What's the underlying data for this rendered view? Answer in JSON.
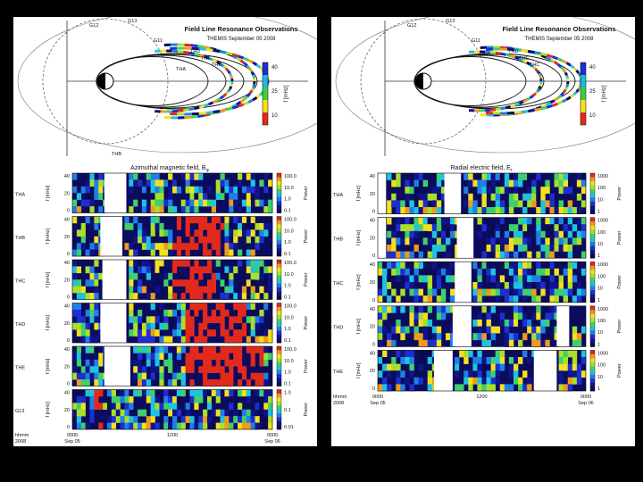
{
  "left": {
    "orbit_title": "Field Line Resonance Observations",
    "orbit_subtitle": "THEMIS  September 05 2008",
    "spacecraft_labels": [
      "G12",
      "G13",
      "G11",
      "THD",
      "THE",
      "THC",
      "THA",
      "THB"
    ],
    "colorbar": {
      "label": "f [mHz]",
      "ticks": [
        "40",
        "25",
        "10"
      ],
      "colors": [
        "#1d2fd0",
        "#1fb8e0",
        "#3fcf3a",
        "#f2e11c",
        "#e22a1c"
      ]
    },
    "spectro_title": "Azimuthal magnetic field, B",
    "spectro_title_sub": "φ",
    "row_ylabel": "f [mHz]",
    "cbar_label": "Power",
    "cbar_ticks": [
      "100.0",
      "10.0",
      "1.0",
      "0.1"
    ],
    "cbar_ticks_last": [
      "1.0",
      "0.1",
      "0.01"
    ],
    "rows": [
      {
        "name": "THA",
        "yticks": [
          "40",
          "20",
          "0"
        ]
      },
      {
        "name": "THB",
        "yticks": [
          "40",
          "20",
          "0"
        ]
      },
      {
        "name": "THC",
        "yticks": [
          "40",
          "20",
          "0"
        ]
      },
      {
        "name": "THD",
        "yticks": [
          "40",
          "20",
          "0"
        ]
      },
      {
        "name": "THE",
        "yticks": [
          "40",
          "20",
          "0"
        ]
      },
      {
        "name": "G13",
        "yticks": [
          "40",
          "20",
          "0"
        ]
      }
    ],
    "x_axis": {
      "hhmm": "hhmm",
      "year": "2008",
      "ticks": [
        "0000",
        "1200",
        "0000"
      ],
      "dates": [
        "Sep 05",
        "",
        "Sep 06"
      ]
    }
  },
  "right": {
    "orbit_title": "Field Line Resonance Observations",
    "orbit_subtitle": "THEMIS  September 05 2008",
    "spacecraft_labels": [
      "G12",
      "G13",
      "G11",
      "THD",
      "THE",
      "THC"
    ],
    "colorbar": {
      "label": "f [mHz]",
      "ticks": [
        "40",
        "25",
        "10"
      ],
      "colors": [
        "#1d2fd0",
        "#1fb8e0",
        "#3fcf3a",
        "#f2e11c",
        "#e22a1c"
      ]
    },
    "spectro_title": "Radial electric field, E",
    "spectro_title_sub": "r",
    "row_ylabel": "f [mHz]",
    "cbar_label": "Power",
    "cbar_ticks": [
      "1000",
      "100",
      "10",
      "1"
    ],
    "rows": [
      {
        "name": "THA",
        "yticks": [
          "40",
          "20",
          "0"
        ]
      },
      {
        "name": "THB",
        "yticks": [
          "40",
          "20",
          "0"
        ]
      },
      {
        "name": "THC",
        "yticks": [
          "40",
          "20",
          "0"
        ]
      },
      {
        "name": "THD",
        "yticks": [
          "40",
          "20",
          "0"
        ]
      },
      {
        "name": "THE",
        "yticks": [
          "40",
          "20",
          "0"
        ]
      }
    ],
    "x_axis": {
      "hhmm": "hhmm",
      "year": "2008",
      "ticks": [
        "0000",
        "1200",
        "0000"
      ],
      "dates": [
        "Sep 05",
        "",
        "Sep 06"
      ]
    }
  },
  "chart_data": [
    {
      "type": "heatmap",
      "title": "Azimuthal magnetic field, Bφ",
      "series": [
        {
          "name": "THA"
        },
        {
          "name": "THB"
        },
        {
          "name": "THC"
        },
        {
          "name": "THD"
        },
        {
          "name": "THE"
        },
        {
          "name": "G13"
        }
      ],
      "ylabel": "f [mHz]",
      "ylim": [
        0,
        40
      ],
      "x_ticks": [
        "0000",
        "1200",
        "0000"
      ],
      "colorbar_label": "Power",
      "colorbar_range": [
        0.1,
        100.0
      ]
    },
    {
      "type": "heatmap",
      "title": "Radial electric field, Er",
      "series": [
        {
          "name": "THA"
        },
        {
          "name": "THB"
        },
        {
          "name": "THC"
        },
        {
          "name": "THD"
        },
        {
          "name": "THE"
        }
      ],
      "ylabel": "f [mHz]",
      "ylim": [
        0,
        40
      ],
      "x_ticks": [
        "0000",
        "1200",
        "0000"
      ],
      "colorbar_label": "Power",
      "colorbar_range": [
        1,
        1000
      ]
    }
  ]
}
